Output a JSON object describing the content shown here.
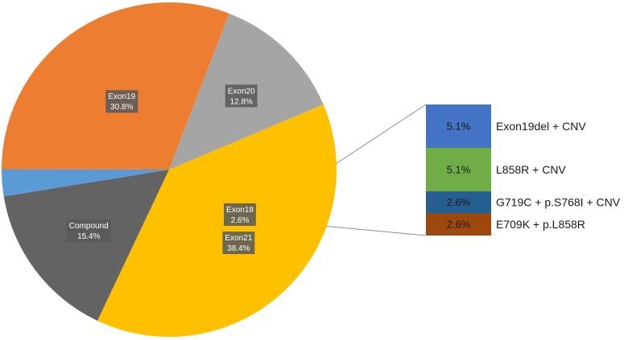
{
  "chart_data": {
    "type": "bar-of-pie",
    "pie": {
      "slices": [
        {
          "name": "Exon21",
          "value": 38.4,
          "label": "38.4%",
          "color": "#ffc000"
        },
        {
          "name": "Compound",
          "value": 15.4,
          "label": "15.4%",
          "color": "#636363"
        },
        {
          "name": "Exon18",
          "value": 2.6,
          "label": "2.6%",
          "color": "#5b9bd5"
        },
        {
          "name": "Exon19",
          "value": 30.8,
          "label": "30.8%",
          "color": "#ed7d31"
        },
        {
          "name": "Exon20",
          "value": 12.8,
          "label": "12.8%",
          "color": "#a5a5a5"
        }
      ]
    },
    "breakdown": {
      "of": "Compound",
      "segments": [
        {
          "name": "Exon19del + CNV",
          "value": 5.1,
          "label": "5.1%",
          "color": "#4472c4"
        },
        {
          "name": "L858R + CNV",
          "value": 5.1,
          "label": "5.1%",
          "color": "#70ad47"
        },
        {
          "name": "G719C + p.S768I + CNV",
          "value": 2.6,
          "label": "2.6%",
          "color": "#255e91"
        },
        {
          "name": "E709K + p.L858R",
          "value": 2.6,
          "label": "2.6%",
          "color": "#9e480e"
        }
      ]
    },
    "connector_color": "#8c8c8c"
  }
}
